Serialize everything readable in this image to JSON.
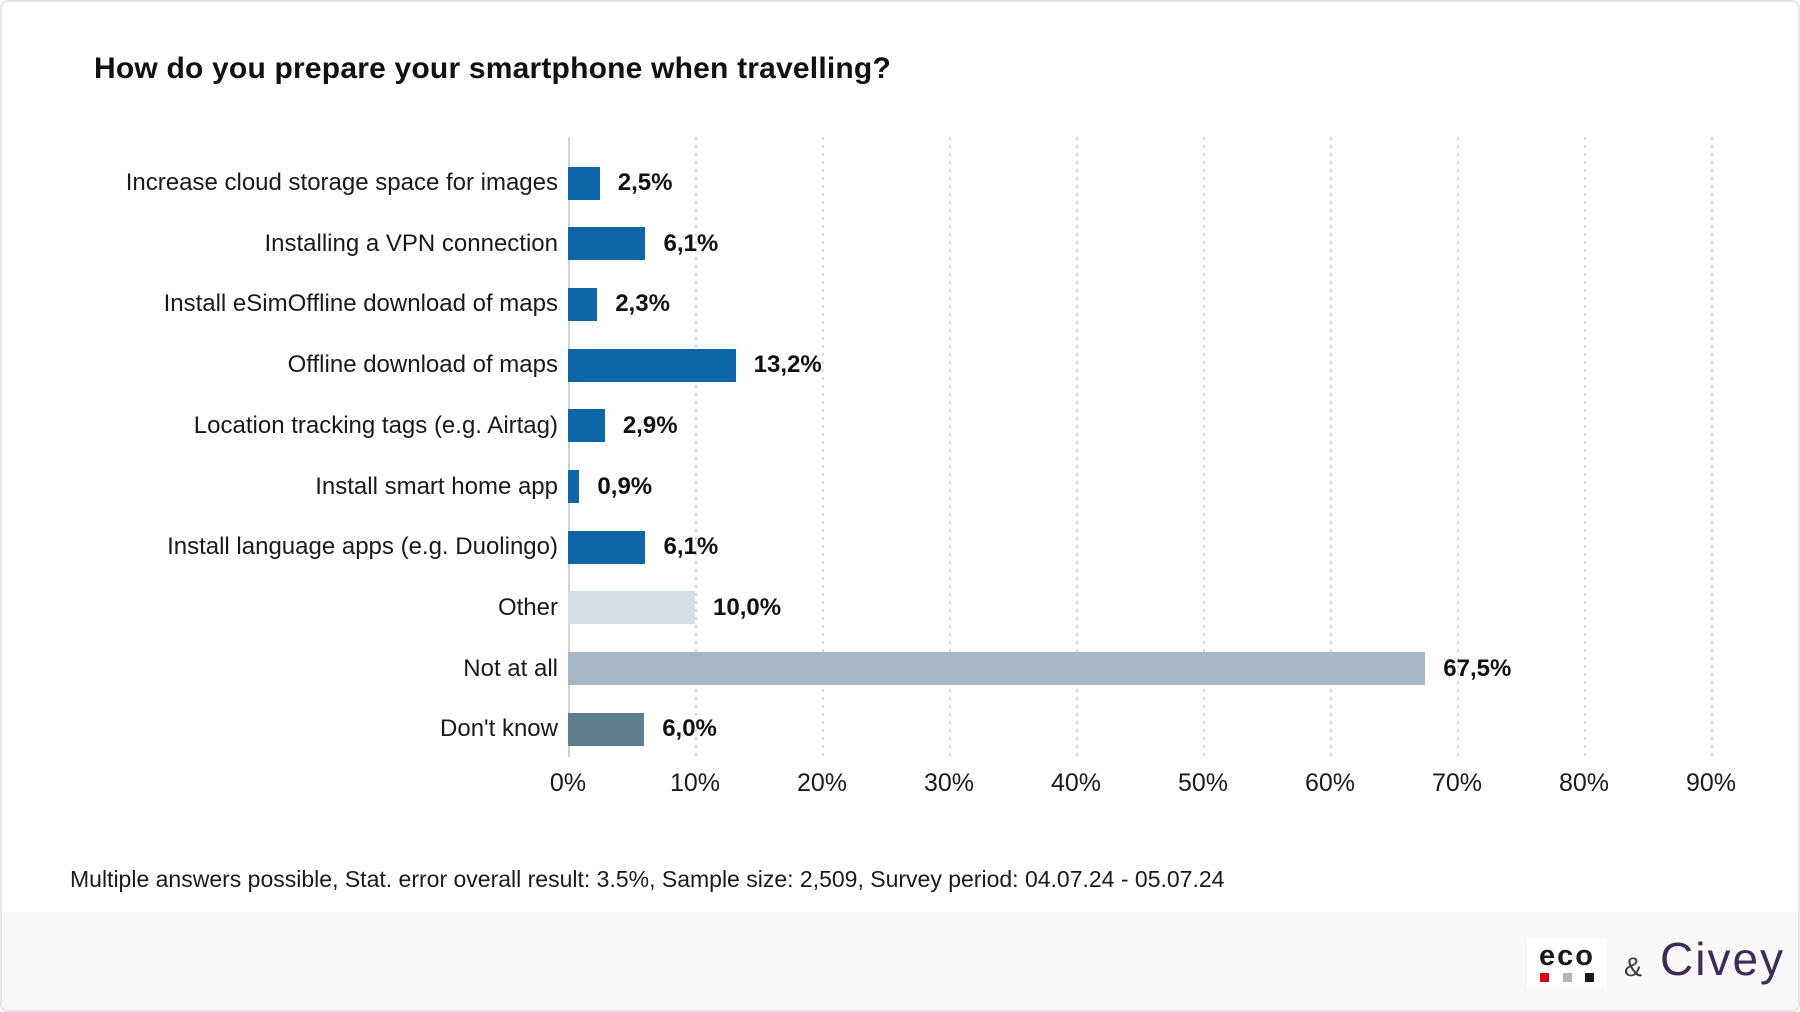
{
  "title": "How do you prepare your smartphone when travelling?",
  "footnote": "Multiple answers possible, Stat. error overall result: 3.5%, Sample size: 2,509, Survey period: 04.07.24 - 05.07.24",
  "footer": {
    "eco_logo_text": "eco",
    "eco_dot_colors": [
      "#e3000f",
      "#b5b5b5",
      "#1a1a1a"
    ],
    "ampersand": "&",
    "civey_logo_text": "Civey",
    "civey_color": "#3e2b56"
  },
  "chart_data": {
    "type": "bar",
    "orientation": "horizontal",
    "title": "How do you prepare your smartphone when travelling?",
    "categories": [
      "Increase cloud storage space for images",
      "Installing a VPN connection",
      "Install eSimOffline download of maps",
      "Offline download of maps",
      "Location tracking tags (e.g. Airtag)",
      "Install smart home app",
      "Install language apps (e.g. Duolingo)",
      "Other",
      "Not at all",
      "Don't know"
    ],
    "values": [
      2.5,
      6.1,
      2.3,
      13.2,
      2.9,
      0.9,
      6.1,
      10.0,
      67.5,
      6.0
    ],
    "value_labels": [
      "2,5%",
      "6,1%",
      "2,3%",
      "13,2%",
      "2,9%",
      "0,9%",
      "6,1%",
      "10,0%",
      "67,5%",
      "6,0%"
    ],
    "bar_colors": [
      "#0e65a8",
      "#0e65a8",
      "#0e65a8",
      "#0e65a8",
      "#0e65a8",
      "#0e65a8",
      "#0e65a8",
      "#d5dde3",
      "#a5b7c3",
      "#5e7e90"
    ],
    "x_ticks": [
      "0%",
      "10%",
      "20%",
      "30%",
      "40%",
      "50%",
      "60%",
      "70%",
      "80%",
      "90%"
    ],
    "xlabel": "",
    "ylabel": "",
    "xlim": [
      0,
      90
    ],
    "grid": "vertical-dotted",
    "legend": "none",
    "accent_color": "#0e65a8"
  }
}
